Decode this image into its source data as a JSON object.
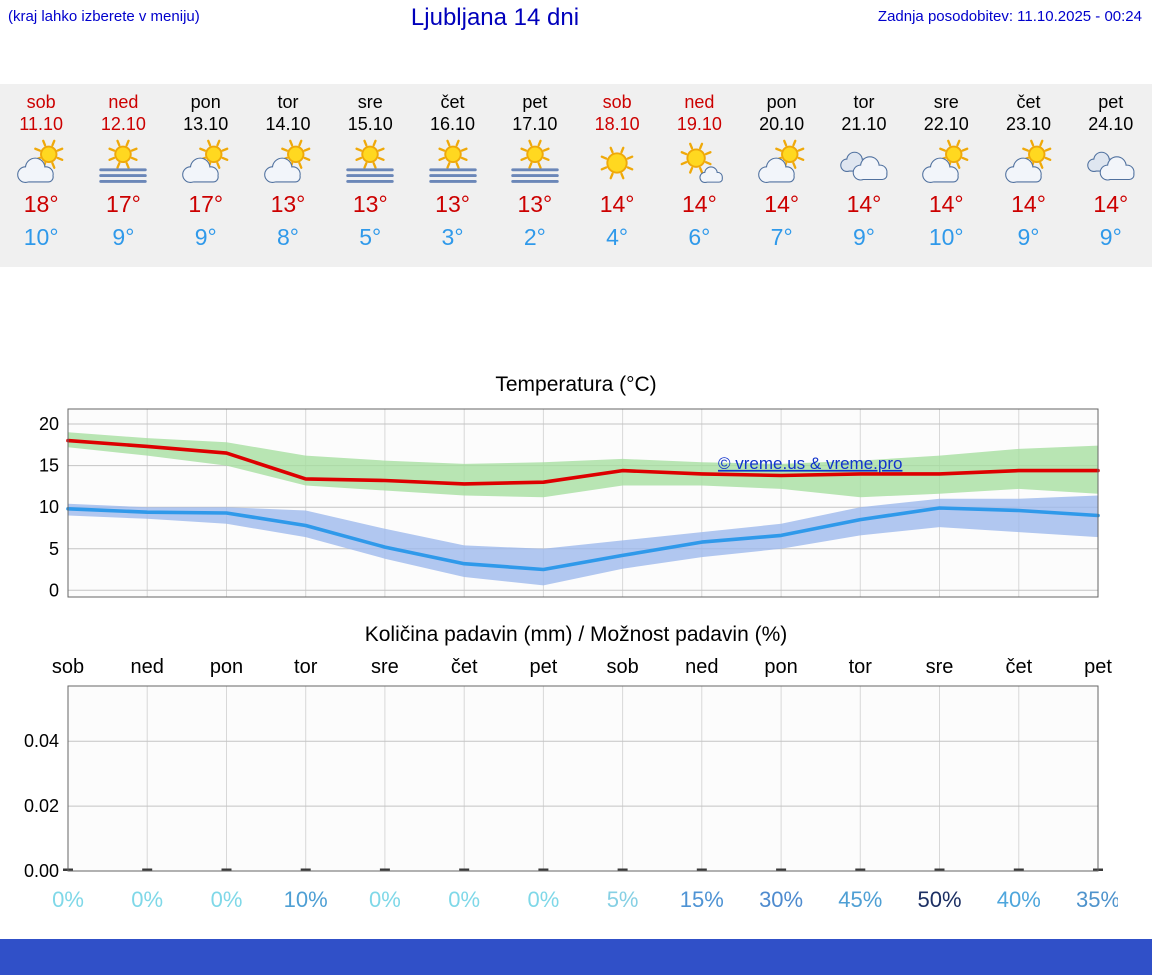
{
  "header": {
    "note": "(kraj lahko izberete v meniju)",
    "title": "Ljubljana 14 dni",
    "updated": "Zadnja posodobitev: 11.10.2025 - 00:24"
  },
  "colors": {
    "header_blue": "#0000cc",
    "high_red": "#cc0000",
    "low_blue": "#2f99ea",
    "strip_bg": "#f0f0f0",
    "green_band": "#a6dfa0",
    "blue_band": "#9db9ec",
    "footer_bar": "#3050c8",
    "watermark_blue": "#1133cc"
  },
  "forecast": {
    "days": [
      {
        "day": "sob",
        "date": "11.10",
        "weekend": true,
        "icon": "sun-cloud",
        "high": "18°",
        "low": "10°"
      },
      {
        "day": "ned",
        "date": "12.10",
        "weekend": true,
        "icon": "fog-sun",
        "high": "17°",
        "low": "9°"
      },
      {
        "day": "pon",
        "date": "13.10",
        "weekend": false,
        "icon": "sun-cloud",
        "high": "17°",
        "low": "9°"
      },
      {
        "day": "tor",
        "date": "14.10",
        "weekend": false,
        "icon": "sun-cloud",
        "high": "13°",
        "low": "8°"
      },
      {
        "day": "sre",
        "date": "15.10",
        "weekend": false,
        "icon": "fog-sun",
        "high": "13°",
        "low": "5°"
      },
      {
        "day": "čet",
        "date": "16.10",
        "weekend": false,
        "icon": "fog-sun",
        "high": "13°",
        "low": "3°"
      },
      {
        "day": "pet",
        "date": "17.10",
        "weekend": false,
        "icon": "fog-sun",
        "high": "13°",
        "low": "2°"
      },
      {
        "day": "sob",
        "date": "18.10",
        "weekend": true,
        "icon": "sun",
        "high": "14°",
        "low": "4°"
      },
      {
        "day": "ned",
        "date": "19.10",
        "weekend": true,
        "icon": "sun-small-cloud",
        "high": "14°",
        "low": "6°"
      },
      {
        "day": "pon",
        "date": "20.10",
        "weekend": false,
        "icon": "sun-cloud",
        "high": "14°",
        "low": "7°"
      },
      {
        "day": "tor",
        "date": "21.10",
        "weekend": false,
        "icon": "cloudy",
        "high": "14°",
        "low": "9°"
      },
      {
        "day": "sre",
        "date": "22.10",
        "weekend": false,
        "icon": "sun-cloud",
        "high": "14°",
        "low": "10°"
      },
      {
        "day": "čet",
        "date": "23.10",
        "weekend": false,
        "icon": "sun-cloud",
        "high": "14°",
        "low": "9°"
      },
      {
        "day": "pet",
        "date": "24.10",
        "weekend": false,
        "icon": "cloudy",
        "high": "14°",
        "low": "9°"
      }
    ]
  },
  "chart_data": [
    {
      "type": "line",
      "title": "Temperatura (°C)",
      "categories": [
        "sob",
        "ned",
        "pon",
        "tor",
        "sre",
        "čet",
        "pet",
        "sob",
        "ned",
        "pon",
        "tor",
        "sre",
        "čet",
        "pet"
      ],
      "yticks": [
        0,
        5,
        10,
        15,
        20
      ],
      "ylim": [
        -0.8,
        21.8
      ],
      "grid": true,
      "watermark": "© vreme.us & vreme.pro",
      "series": [
        {
          "name": "max-temp",
          "color": "#dd0000",
          "values": [
            18,
            17.3,
            16.5,
            13.4,
            13.2,
            12.8,
            13.0,
            14.4,
            14.0,
            13.8,
            14.0,
            14.0,
            14.4,
            14.4
          ]
        },
        {
          "name": "min-temp",
          "color": "#2f99ea",
          "values": [
            9.8,
            9.4,
            9.3,
            7.8,
            5.2,
            3.2,
            2.5,
            4.2,
            5.8,
            6.6,
            8.5,
            9.9,
            9.6,
            9.0
          ]
        }
      ],
      "bands": [
        {
          "name": "max-range",
          "color": "#a6dfa0",
          "upper": [
            19,
            18.3,
            17.8,
            16.2,
            15.6,
            15.2,
            15.4,
            15.8,
            15.4,
            15.2,
            15.6,
            16.2,
            17.0,
            17.4
          ],
          "lower": [
            17.2,
            16.2,
            15.0,
            12.6,
            12.0,
            11.4,
            11.2,
            12.6,
            12.6,
            12.2,
            11.2,
            11.6,
            12.2,
            11.6
          ]
        },
        {
          "name": "min-range",
          "color": "#9db9ec",
          "upper": [
            10.4,
            10.0,
            10.0,
            9.6,
            7.4,
            5.4,
            5.0,
            6.0,
            7.0,
            8.0,
            10.0,
            11.0,
            11.0,
            11.4
          ],
          "lower": [
            9.0,
            8.6,
            8.0,
            6.4,
            3.8,
            1.6,
            0.6,
            2.6,
            4.0,
            5.0,
            6.6,
            7.6,
            7.0,
            6.4
          ]
        }
      ]
    },
    {
      "type": "bar",
      "title": "Količina padavin (mm) / Možnost padavin (%)",
      "categories": [
        "sob",
        "ned",
        "pon",
        "tor",
        "sre",
        "čet",
        "pet",
        "sob",
        "ned",
        "pon",
        "tor",
        "sre",
        "čet",
        "pet"
      ],
      "yticks": [
        "0.00",
        "0.02",
        "0.04"
      ],
      "ylim": [
        0,
        0.057
      ],
      "values": [
        0,
        0,
        0,
        0,
        0,
        0,
        0,
        0,
        0,
        0,
        0,
        0,
        0,
        0
      ],
      "probabilities": [
        {
          "label": "0%",
          "color": "#7fd8e8"
        },
        {
          "label": "0%",
          "color": "#7fd8e8"
        },
        {
          "label": "0%",
          "color": "#7fd8e8"
        },
        {
          "label": "10%",
          "color": "#4e9fd4"
        },
        {
          "label": "0%",
          "color": "#7fd8e8"
        },
        {
          "label": "0%",
          "color": "#7fd8e8"
        },
        {
          "label": "0%",
          "color": "#7fd8e8"
        },
        {
          "label": "5%",
          "color": "#86d0e4"
        },
        {
          "label": "15%",
          "color": "#4e93d4"
        },
        {
          "label": "30%",
          "color": "#4e8bcf"
        },
        {
          "label": "45%",
          "color": "#4e9fd4"
        },
        {
          "label": "50%",
          "color": "#1c2f63"
        },
        {
          "label": "40%",
          "color": "#4ea6dc"
        },
        {
          "label": "35%",
          "color": "#4e93cc"
        }
      ]
    }
  ]
}
